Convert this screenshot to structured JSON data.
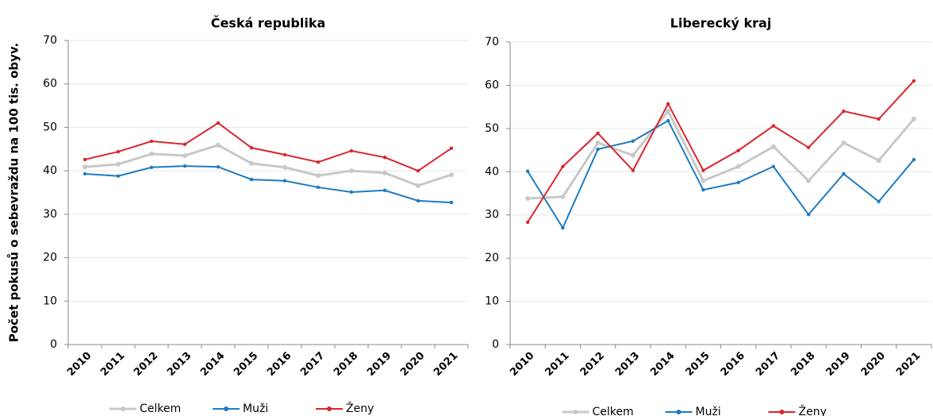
{
  "chart_data": [
    {
      "type": "line",
      "title": "Česká republika",
      "y_label": "Počet pokusů o sebevraždu na 100 tis. obyv.",
      "categories": [
        "2010",
        "2011",
        "2012",
        "2013",
        "2014",
        "2015",
        "2016",
        "2017",
        "2018",
        "2019",
        "2020",
        "2021"
      ],
      "ylim": [
        0,
        70
      ],
      "yticks": [
        0,
        10,
        20,
        30,
        40,
        50,
        60,
        70
      ],
      "series": [
        {
          "name": "Celkem",
          "color": "#c8c8c8",
          "values": [
            40.9,
            41.5,
            43.9,
            43.5,
            45.9,
            41.7,
            40.8,
            38.9,
            40.0,
            39.5,
            36.6,
            39.1
          ]
        },
        {
          "name": "Muži",
          "color": "#1f7bc1",
          "values": [
            39.3,
            38.8,
            40.8,
            41.1,
            40.9,
            38.0,
            37.7,
            36.2,
            35.1,
            35.5,
            33.1,
            32.7
          ]
        },
        {
          "name": "Ženy",
          "color": "#d9262c",
          "values": [
            42.6,
            44.4,
            46.8,
            46.1,
            51.0,
            45.3,
            43.7,
            42.0,
            44.6,
            43.1,
            40.0,
            45.2
          ]
        }
      ]
    },
    {
      "type": "line",
      "title": "Liberecký kraj",
      "categories": [
        "2010",
        "2011",
        "2012",
        "2013",
        "2014",
        "2015",
        "2016",
        "2017",
        "2018",
        "2019",
        "2020",
        "2021"
      ],
      "ylim": [
        0,
        70
      ],
      "yticks": [
        0,
        10,
        20,
        30,
        40,
        50,
        60,
        70
      ],
      "series": [
        {
          "name": "Celkem",
          "color": "#c8c8c8",
          "values": [
            33.8,
            34.2,
            46.7,
            43.8,
            54.0,
            37.9,
            41.2,
            45.8,
            37.9,
            46.7,
            42.6,
            52.2
          ]
        },
        {
          "name": "Muži",
          "color": "#1f7bc1",
          "values": [
            40.1,
            27.0,
            45.2,
            47.1,
            51.8,
            35.8,
            37.5,
            41.2,
            30.1,
            39.5,
            33.1,
            42.8
          ]
        },
        {
          "name": "Ženy",
          "color": "#d9262c",
          "values": [
            28.3,
            41.2,
            48.9,
            40.3,
            55.7,
            40.3,
            44.9,
            50.6,
            45.6,
            54.0,
            52.2,
            61.0
          ]
        }
      ]
    }
  ]
}
